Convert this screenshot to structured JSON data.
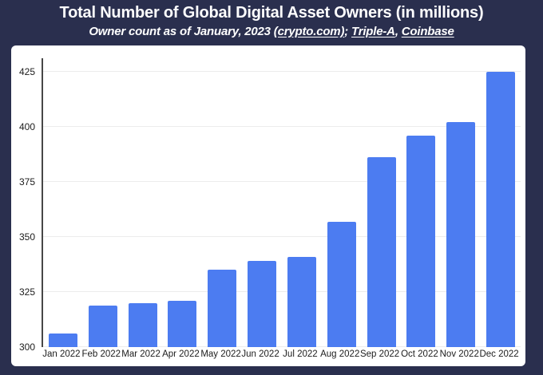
{
  "header": {
    "title": "Total Number of Global Digital Asset Owners (in millions)",
    "subtitle_parts": [
      {
        "text": "Owner count as of January, 2023 ",
        "link": false
      },
      {
        "text": "(crypto.com)",
        "link": true
      },
      {
        "text": "; ",
        "link": false
      },
      {
        "text": "Triple-A",
        "link": true
      },
      {
        "text": ", ",
        "link": false
      },
      {
        "text": "Coinbase",
        "link": true
      }
    ]
  },
  "chart_data": {
    "type": "bar",
    "title": "Total Number of Global Digital Asset Owners (in millions)",
    "subtitle": "Owner count as of January, 2023 (crypto.com); Triple-A, Coinbase",
    "categories": [
      "Jan 2022",
      "Feb 2022",
      "Mar 2022",
      "Apr 2022",
      "May 2022",
      "Jun 2022",
      "Jul 2022",
      "Aug 2022",
      "Sep 2022",
      "Oct 2022",
      "Nov 2022",
      "Dec 2022"
    ],
    "values": [
      306,
      319,
      320,
      321,
      335,
      339,
      341,
      357,
      386,
      396,
      402,
      425
    ],
    "xlabel": "",
    "ylabel": "",
    "ylim": [
      300,
      431
    ],
    "yticks": [
      300,
      325,
      350,
      375,
      400,
      425
    ],
    "grid": true,
    "legend": false
  },
  "colors": {
    "background": "#2a2f4e",
    "panel": "#ffffff",
    "bar": "#4c7cf1",
    "gridline": "#ececec",
    "axis": "#474747",
    "tick_text": "#1c1c1c",
    "title_text": "#ffffff"
  }
}
